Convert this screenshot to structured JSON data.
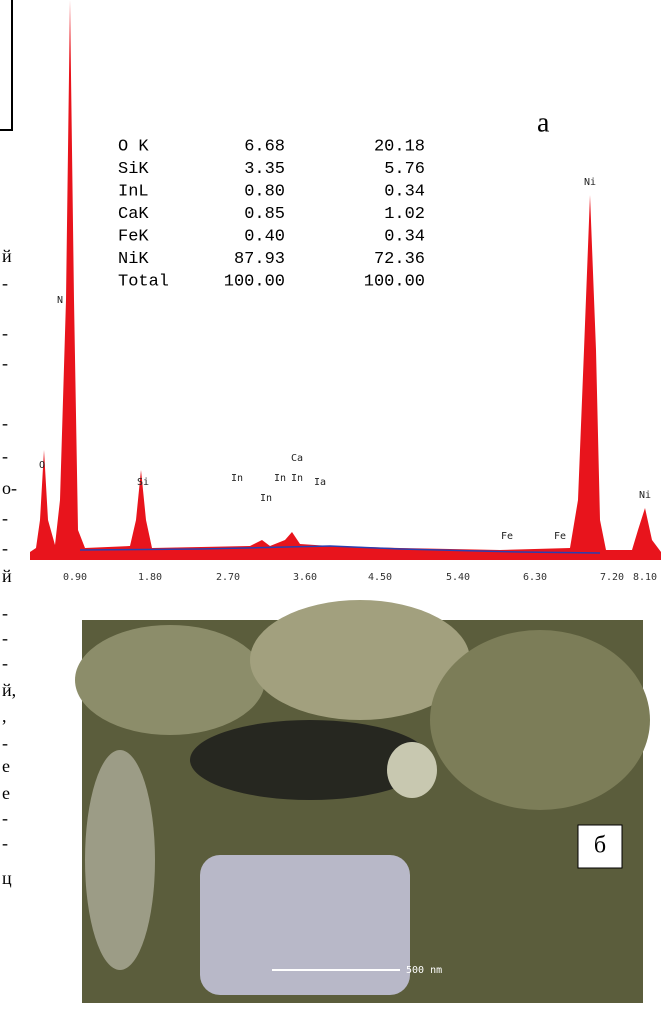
{
  "label_a": "а",
  "spectrum": {
    "peak_labels": [
      "O",
      "N",
      "Si",
      "In",
      "In",
      "Ca",
      "In",
      "Ia",
      "In",
      "Fe",
      "Fe",
      "Ni",
      "Ni"
    ],
    "x_ticks": [
      "0.90",
      "1.80",
      "2.70",
      "3.60",
      "4.50",
      "5.40",
      "6.30",
      "7.20",
      "8.10"
    ]
  },
  "table": {
    "rows": [
      [
        "O K",
        "6.68",
        "20.18"
      ],
      [
        "SiK",
        "3.35",
        "5.76"
      ],
      [
        "InL",
        "0.80",
        "0.34"
      ],
      [
        "CaK",
        "0.85",
        "1.02"
      ],
      [
        "FeK",
        "0.40",
        "0.34"
      ],
      [
        "NiK",
        "87.93",
        "72.36"
      ],
      [
        "Total",
        "100.00",
        "100.00"
      ]
    ]
  },
  "image": {
    "label": "б",
    "scale_bar": "500 nm"
  },
  "margin_fragments": [
    "й",
    "-",
    "-",
    "-",
    "-",
    "-",
    "о-",
    "-",
    "-",
    "й",
    "-",
    "-",
    "-",
    "й,",
    ",",
    "-",
    "е",
    "е",
    "-",
    "-",
    "ц"
  ]
}
